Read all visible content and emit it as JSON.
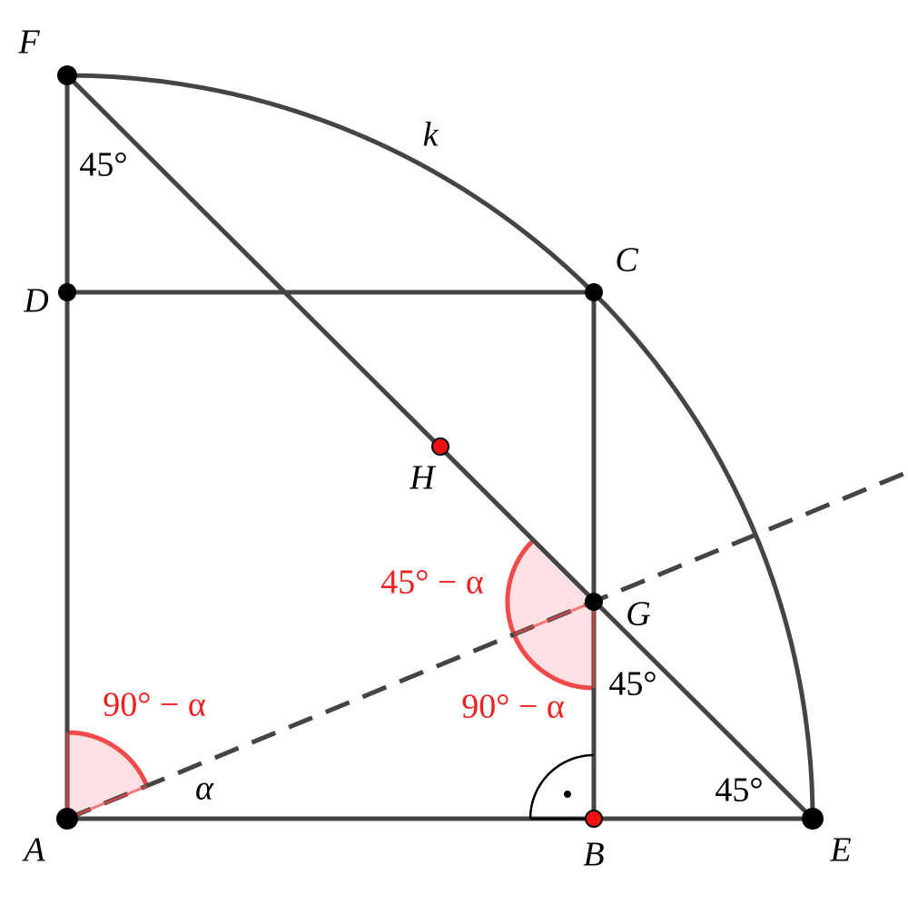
{
  "points": {
    "A": "A",
    "B": "B",
    "C": "C",
    "D": "D",
    "E": "E",
    "F": "F",
    "G": "G",
    "H": "H"
  },
  "arc_label": "k",
  "angles": {
    "f_angle": "45°",
    "g_angle": "45°",
    "e_angle": "45°",
    "alpha": "α",
    "a_red": "90° − α",
    "g_lower_red": "90° − α",
    "g_upper_red": "45° − α"
  }
}
